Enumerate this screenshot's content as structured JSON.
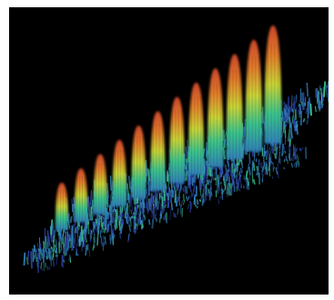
{
  "image": {
    "subject": "3d-surface-plot",
    "peak_count": 12,
    "colors": {
      "background": "#000000",
      "frame": "#ffffff",
      "noise_low": "#2a3f9e",
      "noise_mid": "#2f7fb8",
      "noise_high": "#39c28a",
      "peak_mid": "#c8d235",
      "peak_high": "#e07a2a",
      "peak_top": "#c8452c"
    }
  }
}
